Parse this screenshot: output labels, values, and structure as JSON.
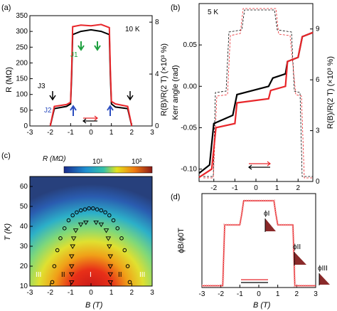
{
  "panels": {
    "a": {
      "tag": "(a)",
      "temp": "10 K",
      "ylabel_left": "R (MΩ)",
      "ylabel_right": "R(B)/R(2 T) (×10³ %)",
      "xlabel": "",
      "x_ticks": [
        "-3",
        "-2",
        "-1",
        "0",
        "1",
        "2",
        "3"
      ],
      "y_ticks_left": [
        "0",
        "50",
        "100",
        "150",
        "200",
        "250",
        "300",
        "350"
      ],
      "y_ticks_right": [
        "0",
        "4",
        "8"
      ],
      "annotations": {
        "j1": "J1",
        "j2": "J2",
        "j3": "J3"
      },
      "colors": {
        "black": "#000000",
        "red": "#e8262a",
        "green": "#1ea040",
        "blue": "#2b4dbf"
      }
    },
    "b": {
      "tag": "(b)",
      "temp": "5 K",
      "ylabel_left": "Kerr angle (rad)",
      "ylabel_right": "R(B)/R(2 T) (×10³ %)",
      "x_ticks": [
        "-2",
        "-1",
        "0",
        "1",
        "2"
      ],
      "y_ticks_left": [
        "-0.10",
        "-0.05",
        "0.00",
        "0.05"
      ],
      "y_ticks_right": [
        "0",
        "3",
        "6",
        "9"
      ]
    },
    "c": {
      "tag": "(c)",
      "colorbar_label": "R (MΩ)",
      "colorbar_ticks": [
        "10¹",
        "10²"
      ],
      "xlabel": "B (T)",
      "ylabel": "T (K)",
      "x_ticks": [
        "-3",
        "-2",
        "-1",
        "0",
        "1",
        "2",
        "3"
      ],
      "y_ticks": [
        "10",
        "20",
        "30",
        "40",
        "50",
        "60"
      ],
      "region_labels": {
        "outer_left": "III",
        "mid_left": "II",
        "center": "I",
        "mid_right": "II",
        "outer_right": "III"
      }
    },
    "d": {
      "tag": "(d)",
      "ylabel": "ϕB/ϕ0T",
      "xlabel": "B (T)",
      "x_ticks": [
        "-3",
        "-2",
        "-1",
        "0",
        "1",
        "2",
        "3"
      ],
      "phase_labels": {
        "p1": "ϕI",
        "p2": "ϕII",
        "p3": "ϕIII"
      }
    }
  },
  "chart_data": [
    {
      "panel": "a",
      "type": "line",
      "xlim": [
        -3,
        3
      ],
      "ylim": [
        0,
        350
      ],
      "y2lim": [
        0,
        8.5
      ],
      "series": [
        {
          "color": "#000000",
          "x": [
            -2.0,
            -1.8,
            -1.2,
            -1.0,
            -0.95,
            -0.9,
            -0.5,
            0.0,
            0.5,
            0.9,
            0.95,
            1.0,
            1.2,
            1.8,
            2.0
          ],
          "y": [
            0,
            55,
            62,
            70,
            160,
            290,
            300,
            305,
            300,
            290,
            160,
            70,
            60,
            55,
            0
          ]
        },
        {
          "color": "#e8262a",
          "x": [
            -2.0,
            -1.8,
            -1.2,
            -1.0,
            -0.95,
            -0.9,
            -0.5,
            0.0,
            0.5,
            0.9,
            0.95,
            1.0,
            1.2,
            1.8,
            2.0
          ],
          "y": [
            0,
            62,
            68,
            75,
            180,
            315,
            320,
            318,
            322,
            312,
            180,
            78,
            70,
            62,
            0
          ]
        }
      ]
    },
    {
      "panel": "b",
      "type": "line",
      "xlim": [
        -2.7,
        2.7
      ],
      "ylim": [
        -0.115,
        0.1
      ],
      "series": [
        {
          "color": "#000000",
          "x": [
            -2.7,
            -2.2,
            -2.0,
            -1.1,
            -0.9,
            0.6,
            0.8,
            1.4,
            1.5,
            2.0,
            2.2,
            2.7
          ],
          "y": [
            -0.105,
            -0.095,
            -0.045,
            -0.035,
            -0.01,
            0.0,
            0.01,
            0.015,
            0.03,
            0.035,
            0.06,
            0.065
          ]
        },
        {
          "color": "#e8262a",
          "x": [
            -2.7,
            -2.1,
            -1.9,
            -1.0,
            -0.9,
            0.6,
            0.7,
            1.4,
            1.5,
            2.0,
            2.2,
            2.7
          ],
          "y": [
            -0.11,
            -0.1,
            -0.05,
            -0.045,
            -0.02,
            -0.015,
            -0.005,
            0.0,
            0.03,
            0.035,
            0.06,
            0.065
          ]
        }
      ]
    },
    {
      "panel": "c",
      "type": "heatmap",
      "xlim": [
        -3,
        3
      ],
      "ylim": [
        10,
        65
      ],
      "boundary_circles": {
        "x": [
          -1.9,
          -1.8,
          -1.65,
          -1.5,
          -1.3,
          -1.1,
          -0.9,
          -0.7,
          -0.5,
          -0.3,
          -0.1,
          0.1,
          0.3,
          0.5,
          0.7,
          0.9,
          1.1,
          1.3,
          1.5,
          1.65,
          1.8,
          1.9
        ],
        "y": [
          12,
          20,
          28,
          34,
          39,
          43,
          45.5,
          47,
          48,
          48.5,
          49,
          49,
          48.5,
          48,
          47,
          45.5,
          43,
          39,
          34,
          28,
          20,
          12
        ]
      },
      "inner_triangles": {
        "x": [
          -0.95,
          -0.95,
          -0.95,
          -0.95,
          -0.9,
          -0.85,
          -0.75,
          -0.5,
          -0.25,
          0.25,
          0.5,
          0.75,
          0.85,
          0.9,
          0.95,
          0.95,
          0.95,
          0.95
        ],
        "y": [
          12,
          16,
          20,
          25,
          30,
          34,
          38,
          41,
          42,
          42,
          41,
          38,
          34,
          30,
          25,
          20,
          16,
          12
        ]
      }
    },
    {
      "panel": "d",
      "type": "line",
      "xlim": [
        -3,
        3
      ],
      "ylim": [
        0,
        1.05
      ],
      "series": [
        {
          "color": "#e8262a",
          "x": [
            -3,
            -2.2,
            -1.9,
            -1.8,
            -1.0,
            -0.9,
            -0.8,
            0.8,
            0.9,
            1.0,
            1.8,
            1.9,
            2.2,
            3
          ],
          "y": [
            0.02,
            0.02,
            0.02,
            0.7,
            0.7,
            0.82,
            0.97,
            0.97,
            0.82,
            0.7,
            0.7,
            0.02,
            0.02,
            0.02
          ]
        }
      ]
    }
  ]
}
